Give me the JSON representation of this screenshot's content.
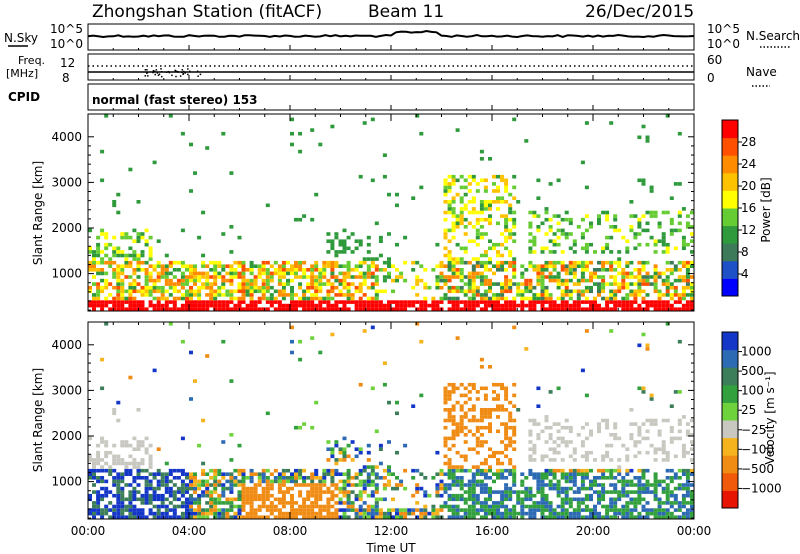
{
  "header": {
    "station": "Zhongshan Station (fitACF)",
    "beam": "Beam 11",
    "date": "26/Dec/2015"
  },
  "strips": {
    "nsky_label": "N.Sky",
    "nsky_top": "10^5",
    "nsky_bottom": "10^0",
    "nsearch_label": "N.Search",
    "nsearch_top": "10^5",
    "nsearch_bottom": "10^0",
    "freq_label": "Freq.",
    "freq_unit": "[MHz]",
    "freq_top": "12",
    "freq_bottom": "8",
    "nave_label": "Nave",
    "nave_top": "60",
    "nave_bottom": "0",
    "cpid_label": "CPID",
    "cpid_value": "normal (fast stereo) 153"
  },
  "chart_data": [
    {
      "type": "heatmap",
      "panel": "power",
      "ylabel": "Slant Range [km]",
      "xlabel": "Time UT",
      "x_ticks": [
        "00:00",
        "04:00",
        "08:00",
        "12:00",
        "16:00",
        "20:00",
        "00:00"
      ],
      "xlim_hours": [
        0,
        24
      ],
      "y_ticks": [
        "1000",
        "2000",
        "3000",
        "4000"
      ],
      "ylim": [
        180,
        4500
      ],
      "colorbar_label": "Power [dB]",
      "colorbar_ticks": [
        "4",
        "8",
        "12",
        "16",
        "20",
        "24",
        "28"
      ],
      "colorbar_colors": [
        "#0000ff",
        "#1e50c8",
        "#3c7a5a",
        "#2f9a3c",
        "#66cc33",
        "#ffff00",
        "#ffc200",
        "#ff8c00",
        "#ff5000",
        "#ff0000"
      ]
    },
    {
      "type": "heatmap",
      "panel": "velocity",
      "ylabel": "Slant Range [km]",
      "xlabel": "Time UT",
      "x_ticks": [
        "00:00",
        "04:00",
        "08:00",
        "12:00",
        "16:00",
        "20:00",
        "00:00"
      ],
      "xlim_hours": [
        0,
        24
      ],
      "y_ticks": [
        "1000",
        "2000",
        "3000",
        "4000"
      ],
      "ylim": [
        180,
        4500
      ],
      "colorbar_label": "Velocity [m s⁻¹]",
      "colorbar_ticks": [
        "1000",
        "500",
        "100",
        "25",
        "−25",
        "−100",
        "−500",
        "−1000"
      ],
      "colorbar_colors": [
        "#1437c8",
        "#2d6ab4",
        "#3c7d5a",
        "#32a03c",
        "#6ed23c",
        "#c8c8c0",
        "#f5b41e",
        "#f08c14",
        "#f05a0a",
        "#e61400"
      ]
    }
  ]
}
